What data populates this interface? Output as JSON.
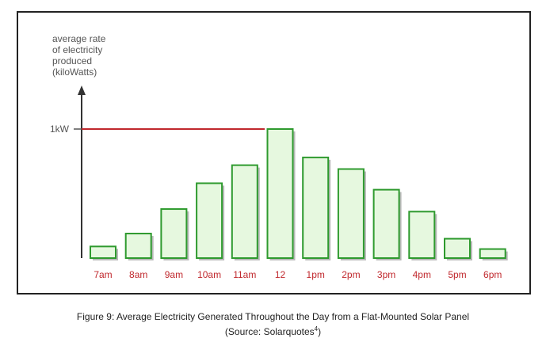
{
  "chart_data": {
    "type": "bar",
    "ylabel_lines": [
      "average rate",
      "of electricity",
      "produced",
      "(kiloWatts)"
    ],
    "reference_line": {
      "label": "1kW",
      "value": 1.0,
      "color": "#c0282d"
    },
    "categories": [
      "7am",
      "8am",
      "9am",
      "10am",
      "11am",
      "12",
      "1pm",
      "2pm",
      "3pm",
      "4pm",
      "5pm",
      "6pm"
    ],
    "values": [
      0.09,
      0.19,
      0.38,
      0.58,
      0.72,
      1.0,
      0.78,
      0.69,
      0.53,
      0.36,
      0.15,
      0.07
    ],
    "ylim": [
      0,
      1.0
    ],
    "bar_fill": "#e6f8df",
    "bar_stroke": "#2e9a2e",
    "label_color": "#c0282d"
  },
  "caption": {
    "line1": "Figure 9: Average Electricity Generated Throughout the Day from a Flat-Mounted Solar Panel",
    "line2_prefix": "(Source: Solarquotes",
    "line2_sup": "4",
    "line2_suffix": ")"
  }
}
